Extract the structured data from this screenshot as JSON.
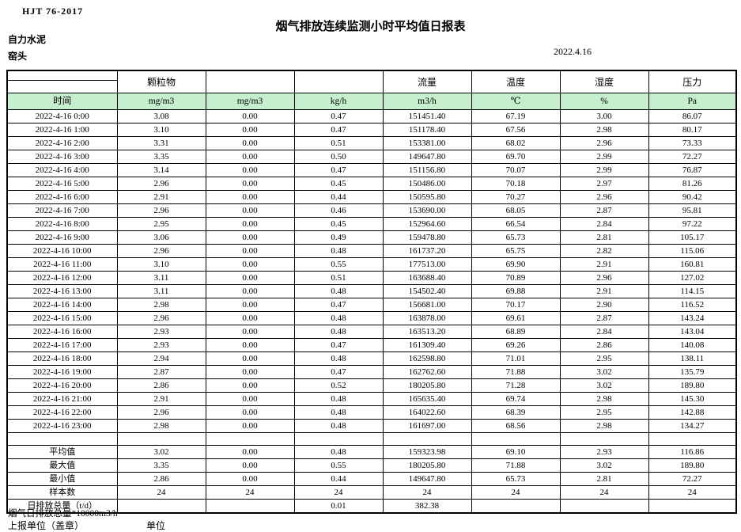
{
  "page": {
    "doc_code": "HJT 76-2017",
    "title": "烟气排放连续监测小时平均值日报表",
    "company": "自力水泥",
    "station": "窑头",
    "date": "2022.4.16"
  },
  "colors": {
    "header_green": "#c6efce"
  },
  "table": {
    "group_headers": [
      "",
      "颗粒物",
      "",
      "",
      "流量",
      "温度",
      "湿度",
      "压力"
    ],
    "unit_headers": [
      "时间",
      "mg/m3",
      "mg/m3",
      "kg/h",
      "m3/h",
      "℃",
      "%",
      "Pa"
    ],
    "rows": [
      [
        "2022-4-16 0:00",
        "3.08",
        "0.00",
        "0.47",
        "151451.40",
        "67.19",
        "3.00",
        "86.07"
      ],
      [
        "2022-4-16 1:00",
        "3.10",
        "0.00",
        "0.47",
        "151178.40",
        "67.56",
        "2.98",
        "80.17"
      ],
      [
        "2022-4-16 2:00",
        "3.31",
        "0.00",
        "0.51",
        "153381.00",
        "68.02",
        "2.96",
        "73.33"
      ],
      [
        "2022-4-16 3:00",
        "3.35",
        "0.00",
        "0.50",
        "149647.80",
        "69.70",
        "2.99",
        "72.27"
      ],
      [
        "2022-4-16 4:00",
        "3.14",
        "0.00",
        "0.47",
        "151156.80",
        "70.07",
        "2.99",
        "76.87"
      ],
      [
        "2022-4-16 5:00",
        "2.96",
        "0.00",
        "0.45",
        "150486.00",
        "70.18",
        "2.97",
        "81.26"
      ],
      [
        "2022-4-16 6:00",
        "2.91",
        "0.00",
        "0.44",
        "150595.80",
        "70.27",
        "2.96",
        "90.42"
      ],
      [
        "2022-4-16 7:00",
        "2.96",
        "0.00",
        "0.46",
        "153690.00",
        "68.05",
        "2.87",
        "95.81"
      ],
      [
        "2022-4-16 8:00",
        "2.95",
        "0.00",
        "0.45",
        "152964.60",
        "66.54",
        "2.84",
        "97.22"
      ],
      [
        "2022-4-16 9:00",
        "3.06",
        "0.00",
        "0.49",
        "159478.80",
        "65.73",
        "2.81",
        "105.17"
      ],
      [
        "2022-4-16 10:00",
        "2.96",
        "0.00",
        "0.48",
        "161737.20",
        "65.75",
        "2.82",
        "115.06"
      ],
      [
        "2022-4-16 11:00",
        "3.10",
        "0.00",
        "0.55",
        "177513.00",
        "69.90",
        "2.91",
        "160.81"
      ],
      [
        "2022-4-16 12:00",
        "3.11",
        "0.00",
        "0.51",
        "163688.40",
        "70.89",
        "2.96",
        "127.02"
      ],
      [
        "2022-4-16 13:00",
        "3.11",
        "0.00",
        "0.48",
        "154502.40",
        "69.88",
        "2.91",
        "114.15"
      ],
      [
        "2022-4-16 14:00",
        "2.98",
        "0.00",
        "0.47",
        "156681.00",
        "70.17",
        "2.90",
        "116.52"
      ],
      [
        "2022-4-16 15:00",
        "2.96",
        "0.00",
        "0.48",
        "163878.00",
        "69.61",
        "2.87",
        "143.24"
      ],
      [
        "2022-4-16 16:00",
        "2.93",
        "0.00",
        "0.48",
        "163513.20",
        "68.89",
        "2.84",
        "143.04"
      ],
      [
        "2022-4-16 17:00",
        "2.93",
        "0.00",
        "0.47",
        "161309.40",
        "69.26",
        "2.86",
        "140.08"
      ],
      [
        "2022-4-16 18:00",
        "2.94",
        "0.00",
        "0.48",
        "162598.80",
        "71.01",
        "2.95",
        "138.11"
      ],
      [
        "2022-4-16 19:00",
        "2.87",
        "0.00",
        "0.47",
        "162762.60",
        "71.88",
        "3.02",
        "135.79"
      ],
      [
        "2022-4-16 20:00",
        "2.86",
        "0.00",
        "0.52",
        "180205.80",
        "71.28",
        "3.02",
        "189.80"
      ],
      [
        "2022-4-16 21:00",
        "2.91",
        "0.00",
        "0.48",
        "165635.40",
        "69.74",
        "2.98",
        "145.30"
      ],
      [
        "2022-4-16 22:00",
        "2.96",
        "0.00",
        "0.48",
        "164022.60",
        "68.39",
        "2.95",
        "142.88"
      ],
      [
        "2022-4-16 23:00",
        "2.98",
        "0.00",
        "0.48",
        "161697.00",
        "68.56",
        "2.98",
        "134.27"
      ]
    ],
    "spacer_row": [
      "",
      "",
      "",
      "",
      "",
      "",
      "",
      ""
    ],
    "summary_rows": [
      [
        "平均值",
        "3.02",
        "0.00",
        "0.48",
        "159323.98",
        "69.10",
        "2.93",
        "116.86"
      ],
      [
        "最大值",
        "3.35",
        "0.00",
        "0.55",
        "180205.80",
        "71.88",
        "3.02",
        "189.80"
      ],
      [
        "最小值",
        "2.86",
        "0.00",
        "0.44",
        "149647.80",
        "65.73",
        "2.81",
        "72.27"
      ],
      [
        "样本数",
        "24",
        "24",
        "24",
        "24",
        "24",
        "24",
        "24"
      ],
      [
        "日排放总量（t/d）",
        "",
        "",
        "0.01",
        "382.38",
        "",
        "",
        ""
      ]
    ]
  },
  "footer": {
    "note": "烟气日排放总量*10000m3/h",
    "report_unit_label": "上报单位（盖章）",
    "unit_label": "单位"
  }
}
